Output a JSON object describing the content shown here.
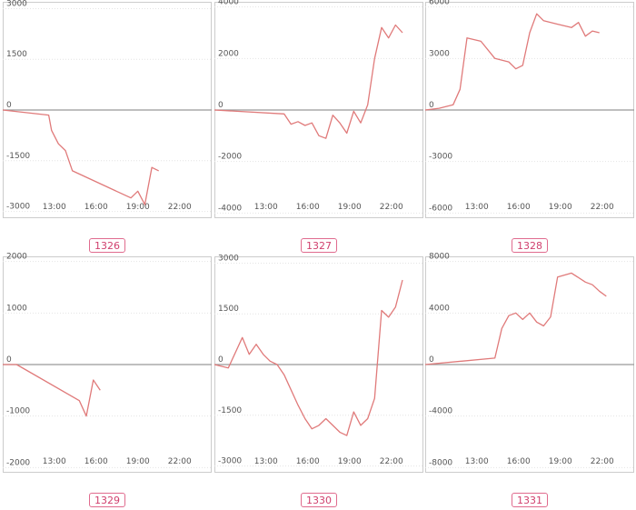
{
  "page": {
    "background": "#ffffff"
  },
  "style": {
    "line_color": "#e07a7a",
    "frame_color": "#cccccc",
    "zero_line_color": "#999999",
    "badge_color": "#d0406e"
  },
  "chart_data": [
    {
      "type": "line",
      "badge": "1326",
      "yticks": [
        3000,
        1500,
        0,
        -1500,
        -3000
      ],
      "ylim": [
        -3200,
        3200
      ],
      "xticks": [
        "13:00",
        "16:00",
        "19:00",
        "22:00"
      ],
      "xtick_values": [
        13,
        16,
        19,
        22
      ],
      "xlim": [
        9.3,
        24.3
      ],
      "grid": true,
      "series": [
        {
          "x": [
            9.3,
            12.6,
            12.8,
            13.3,
            13.8,
            14.3,
            18.5,
            19.0,
            19.5,
            20.0,
            20.5
          ],
          "y": [
            0,
            -150,
            -600,
            -1000,
            -1200,
            -1800,
            -2600,
            -2400,
            -2800,
            -1700,
            -1800
          ]
        }
      ]
    },
    {
      "type": "line",
      "badge": "1327",
      "yticks": [
        4000,
        2000,
        0,
        -2000,
        -4000
      ],
      "ylim": [
        -4200,
        4200
      ],
      "xticks": [
        "13:00",
        "16:00",
        "19:00",
        "22:00"
      ],
      "xtick_values": [
        13,
        16,
        19,
        22
      ],
      "xlim": [
        9.3,
        24.3
      ],
      "grid": true,
      "series": [
        {
          "x": [
            9.3,
            14.3,
            14.8,
            15.3,
            15.8,
            16.3,
            16.8,
            17.3,
            17.8,
            18.3,
            18.8,
            19.3,
            19.8,
            20.3,
            20.8,
            21.3,
            21.8,
            22.3,
            22.8
          ],
          "y": [
            0,
            -150,
            -550,
            -450,
            -600,
            -500,
            -1000,
            -1100,
            -200,
            -500,
            -900,
            -50,
            -500,
            200,
            2000,
            3200,
            2800,
            3300,
            3000
          ]
        }
      ]
    },
    {
      "type": "line",
      "badge": "1328",
      "yticks": [
        6000,
        3000,
        0,
        -3000,
        -6000
      ],
      "ylim": [
        -6300,
        6300
      ],
      "xticks": [
        "13:00",
        "16:00",
        "19:00",
        "22:00"
      ],
      "xtick_values": [
        13,
        16,
        19,
        22
      ],
      "xlim": [
        9.3,
        24.3
      ],
      "grid": true,
      "series": [
        {
          "x": [
            9.3,
            10.3,
            11.3,
            11.8,
            12.3,
            13.3,
            14.3,
            15.3,
            15.8,
            16.3,
            16.8,
            17.3,
            17.8,
            18.8,
            19.8,
            20.3,
            20.8,
            21.3,
            21.8
          ],
          "y": [
            0,
            100,
            300,
            1200,
            4200,
            4000,
            3000,
            2800,
            2400,
            2600,
            4500,
            5600,
            5200,
            5000,
            4800,
            5100,
            4300,
            4600,
            4500
          ]
        }
      ]
    },
    {
      "type": "line",
      "badge": "1329",
      "yticks": [
        2000,
        1000,
        0,
        -1000,
        -2000
      ],
      "ylim": [
        -2100,
        2100
      ],
      "xticks": [
        "13:00",
        "16:00",
        "19:00",
        "22:00"
      ],
      "xtick_values": [
        13,
        16,
        19,
        22
      ],
      "xlim": [
        9.3,
        24.3
      ],
      "grid": true,
      "series": [
        {
          "x": [
            9.3,
            10.3,
            14.8,
            15.3,
            15.8,
            16.3
          ],
          "y": [
            0,
            0,
            -700,
            -1000,
            -300,
            -500
          ]
        }
      ]
    },
    {
      "type": "line",
      "badge": "1330",
      "yticks": [
        3000,
        1500,
        0,
        -1500,
        -3000
      ],
      "ylim": [
        -3200,
        3200
      ],
      "xticks": [
        "13:00",
        "16:00",
        "19:00",
        "22:00"
      ],
      "xtick_values": [
        13,
        16,
        19,
        22
      ],
      "xlim": [
        9.3,
        24.3
      ],
      "grid": true,
      "series": [
        {
          "x": [
            9.3,
            10.3,
            11.3,
            11.8,
            12.3,
            12.8,
            13.3,
            13.8,
            14.3,
            15.3,
            15.8,
            16.3,
            16.8,
            17.3,
            17.8,
            18.3,
            18.8,
            19.3,
            19.8,
            20.3,
            20.8,
            21.3,
            21.8,
            22.3,
            22.8
          ],
          "y": [
            0,
            -100,
            800,
            300,
            600,
            300,
            100,
            0,
            -300,
            -1200,
            -1600,
            -1900,
            -1800,
            -1600,
            -1800,
            -2000,
            -2100,
            -1400,
            -1800,
            -1600,
            -1000,
            1600,
            1400,
            1700,
            2500
          ]
        }
      ]
    },
    {
      "type": "line",
      "badge": "1331",
      "yticks": [
        8000,
        4000,
        0,
        -4000,
        -8000
      ],
      "ylim": [
        -8400,
        8400
      ],
      "xticks": [
        "13:00",
        "16:00",
        "19:00",
        "22:00"
      ],
      "xtick_values": [
        13,
        16,
        19,
        22
      ],
      "xlim": [
        9.3,
        24.3
      ],
      "grid": true,
      "series": [
        {
          "x": [
            9.3,
            14.3,
            14.8,
            15.3,
            15.8,
            16.3,
            16.8,
            17.3,
            17.8,
            18.3,
            18.8,
            19.8,
            20.8,
            21.3,
            21.8,
            22.3
          ],
          "y": [
            0,
            500,
            2800,
            3800,
            4000,
            3500,
            4000,
            3300,
            3000,
            3700,
            6800,
            7100,
            6400,
            6200,
            5700,
            5300
          ]
        }
      ]
    }
  ]
}
